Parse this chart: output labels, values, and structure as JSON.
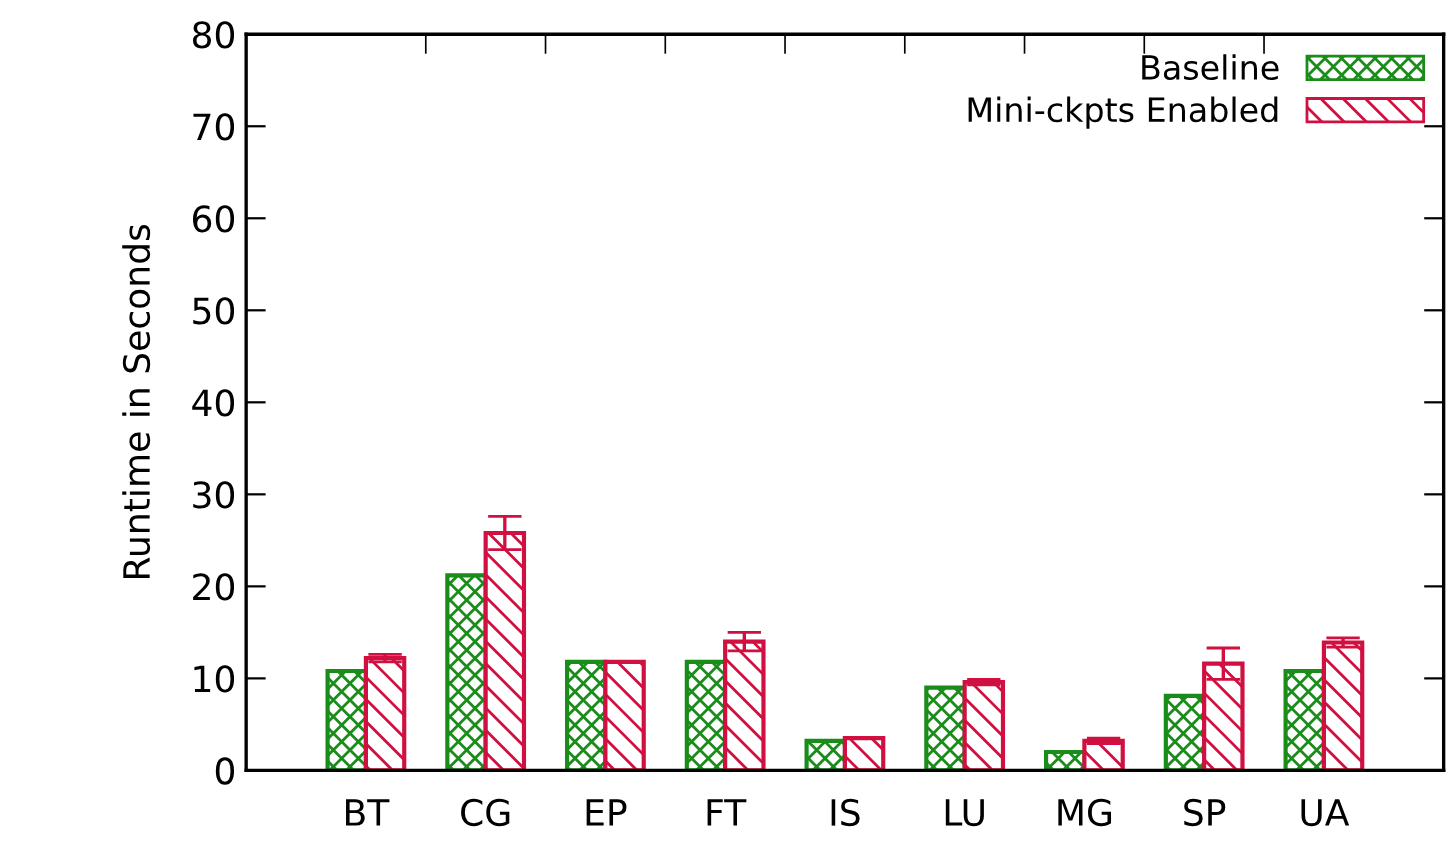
{
  "chart_data": {
    "type": "bar",
    "ylabel": "Runtime in Seconds",
    "categories": [
      "BT",
      "CG",
      "EP",
      "FT",
      "IS",
      "LU",
      "MG",
      "SP",
      "UA"
    ],
    "series": [
      {
        "name": "Baseline",
        "color": "#1a8c1a",
        "values": [
          10.8,
          21.2,
          11.8,
          11.8,
          3.2,
          9.0,
          2.0,
          8.1,
          10.8
        ]
      },
      {
        "name": "Mini-ckpts Enabled",
        "color": "#d01040",
        "values": [
          12.2,
          25.8,
          11.8,
          14.0,
          3.5,
          9.6,
          3.2,
          11.6,
          13.9
        ],
        "errors": [
          0.4,
          1.8,
          null,
          1.0,
          null,
          0.3,
          0.3,
          1.7,
          0.5
        ]
      }
    ],
    "ylim": [
      0,
      80
    ],
    "yticks": [
      0,
      10,
      20,
      30,
      40,
      50,
      60,
      70,
      80
    ],
    "grid": false,
    "legend": "top right"
  }
}
